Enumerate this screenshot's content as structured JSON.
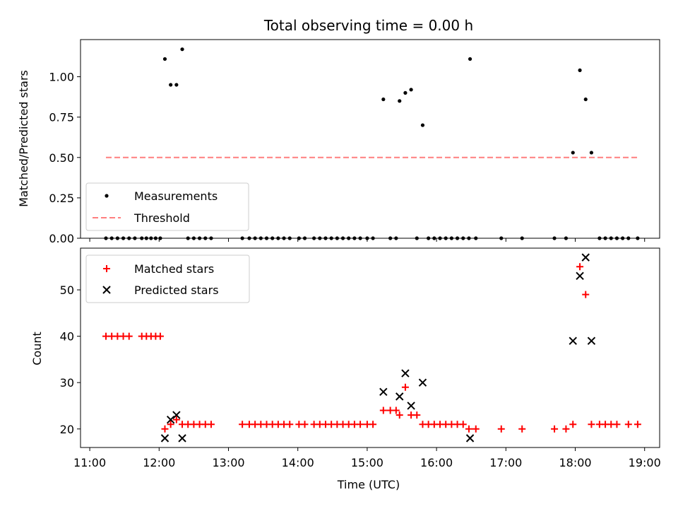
{
  "chart_data": [
    {
      "type": "scatter",
      "title": "Total observing time = 0.00 h",
      "xlabel": "",
      "ylabel": "Matched/Predicted stars",
      "ylim": [
        0,
        1.23
      ],
      "y_ticks": [
        "0.00",
        "0.25",
        "0.50",
        "0.75",
        "1.00"
      ],
      "legend": {
        "placement": "bottom-left",
        "entries": [
          "Measurements",
          "Threshold"
        ]
      },
      "series": [
        {
          "name": "Measurements",
          "marker": "dot",
          "color": "#000000",
          "points": [
            [
              "11:14",
              0
            ],
            [
              "11:19",
              0
            ],
            [
              "11:24",
              0
            ],
            [
              "11:29",
              0
            ],
            [
              "11:34",
              0
            ],
            [
              "11:39",
              0
            ],
            [
              "11:45",
              0
            ],
            [
              "11:49",
              0
            ],
            [
              "11:53",
              0
            ],
            [
              "11:57",
              0
            ],
            [
              "12:01",
              0
            ],
            [
              "12:05",
              1.11
            ],
            [
              "12:10",
              0.95
            ],
            [
              "12:15",
              0.95
            ],
            [
              "12:20",
              1.17
            ],
            [
              "12:25",
              0
            ],
            [
              "12:30",
              0
            ],
            [
              "12:35",
              0
            ],
            [
              "12:40",
              0
            ],
            [
              "12:45",
              0
            ],
            [
              "13:12",
              0
            ],
            [
              "13:18",
              0
            ],
            [
              "13:23",
              0
            ],
            [
              "13:28",
              0
            ],
            [
              "13:33",
              0
            ],
            [
              "13:38",
              0
            ],
            [
              "13:43",
              0
            ],
            [
              "13:48",
              0
            ],
            [
              "13:53",
              0
            ],
            [
              "14:01",
              0
            ],
            [
              "14:06",
              0
            ],
            [
              "14:14",
              0
            ],
            [
              "14:19",
              0
            ],
            [
              "14:24",
              0
            ],
            [
              "14:29",
              0
            ],
            [
              "14:34",
              0
            ],
            [
              "14:39",
              0
            ],
            [
              "14:44",
              0
            ],
            [
              "14:49",
              0
            ],
            [
              "14:54",
              0
            ],
            [
              "15:00",
              0
            ],
            [
              "15:05",
              0
            ],
            [
              "15:14",
              0.86
            ],
            [
              "15:20",
              0
            ],
            [
              "15:25",
              0
            ],
            [
              "15:28",
              0.85
            ],
            [
              "15:33",
              0.9
            ],
            [
              "15:38",
              0.92
            ],
            [
              "15:43",
              0
            ],
            [
              "15:48",
              0.7
            ],
            [
              "15:53",
              0
            ],
            [
              "15:58",
              0
            ],
            [
              "16:03",
              0
            ],
            [
              "16:08",
              0
            ],
            [
              "16:13",
              0
            ],
            [
              "16:18",
              0
            ],
            [
              "16:23",
              0
            ],
            [
              "16:28",
              0
            ],
            [
              "16:29",
              1.11
            ],
            [
              "16:34",
              0
            ],
            [
              "16:56",
              0
            ],
            [
              "17:14",
              0
            ],
            [
              "17:42",
              0
            ],
            [
              "17:52",
              0
            ],
            [
              "17:58",
              0.53
            ],
            [
              "18:04",
              1.04
            ],
            [
              "18:09",
              0.86
            ],
            [
              "18:14",
              0.53
            ],
            [
              "18:21",
              0
            ],
            [
              "18:26",
              0
            ],
            [
              "18:31",
              0
            ],
            [
              "18:36",
              0
            ],
            [
              "18:41",
              0
            ],
            [
              "18:46",
              0
            ],
            [
              "18:54",
              0
            ]
          ]
        },
        {
          "name": "Threshold",
          "style": "dashed",
          "color": "#ff7f7f",
          "x": [
            "11:14",
            "18:54"
          ],
          "y": [
            0.5,
            0.5
          ]
        }
      ]
    },
    {
      "type": "scatter",
      "title": "",
      "xlabel": "Time (UTC)",
      "ylabel": "Count",
      "ylim": [
        16,
        59
      ],
      "y_ticks": [
        "20",
        "30",
        "40",
        "50"
      ],
      "x_ticks": [
        "11:00",
        "12:00",
        "13:00",
        "14:00",
        "15:00",
        "16:00",
        "17:00",
        "18:00",
        "19:00"
      ],
      "xlim": [
        "10:52",
        "19:13"
      ],
      "legend": {
        "placement": "top-left",
        "entries": [
          "Matched stars",
          "Predicted stars"
        ]
      },
      "series": [
        {
          "name": "Matched stars",
          "marker": "plus",
          "color": "#ff0000",
          "points": [
            [
              "11:14",
              40
            ],
            [
              "11:19",
              40
            ],
            [
              "11:24",
              40
            ],
            [
              "11:29",
              40
            ],
            [
              "11:34",
              40
            ],
            [
              "11:45",
              40
            ],
            [
              "11:49",
              40
            ],
            [
              "11:53",
              40
            ],
            [
              "11:57",
              40
            ],
            [
              "12:01",
              40
            ],
            [
              "12:05",
              20
            ],
            [
              "12:10",
              21
            ],
            [
              "12:15",
              22
            ],
            [
              "12:20",
              21
            ],
            [
              "12:25",
              21
            ],
            [
              "12:30",
              21
            ],
            [
              "12:35",
              21
            ],
            [
              "12:40",
              21
            ],
            [
              "12:45",
              21
            ],
            [
              "13:12",
              21
            ],
            [
              "13:18",
              21
            ],
            [
              "13:23",
              21
            ],
            [
              "13:28",
              21
            ],
            [
              "13:33",
              21
            ],
            [
              "13:38",
              21
            ],
            [
              "13:43",
              21
            ],
            [
              "13:48",
              21
            ],
            [
              "13:53",
              21
            ],
            [
              "14:01",
              21
            ],
            [
              "14:06",
              21
            ],
            [
              "14:14",
              21
            ],
            [
              "14:19",
              21
            ],
            [
              "14:24",
              21
            ],
            [
              "14:29",
              21
            ],
            [
              "14:34",
              21
            ],
            [
              "14:39",
              21
            ],
            [
              "14:44",
              21
            ],
            [
              "14:49",
              21
            ],
            [
              "14:54",
              21
            ],
            [
              "15:00",
              21
            ],
            [
              "15:05",
              21
            ],
            [
              "15:14",
              24
            ],
            [
              "15:20",
              24
            ],
            [
              "15:25",
              24
            ],
            [
              "15:28",
              23
            ],
            [
              "15:33",
              29
            ],
            [
              "15:38",
              23
            ],
            [
              "15:43",
              23
            ],
            [
              "15:48",
              21
            ],
            [
              "15:53",
              21
            ],
            [
              "15:58",
              21
            ],
            [
              "16:03",
              21
            ],
            [
              "16:08",
              21
            ],
            [
              "16:13",
              21
            ],
            [
              "16:18",
              21
            ],
            [
              "16:23",
              21
            ],
            [
              "16:28",
              20
            ],
            [
              "16:34",
              20
            ],
            [
              "16:56",
              20
            ],
            [
              "17:14",
              20
            ],
            [
              "17:42",
              20
            ],
            [
              "17:52",
              20
            ],
            [
              "17:58",
              21
            ],
            [
              "18:04",
              55
            ],
            [
              "18:09",
              49
            ],
            [
              "18:14",
              21
            ],
            [
              "18:21",
              21
            ],
            [
              "18:26",
              21
            ],
            [
              "18:31",
              21
            ],
            [
              "18:36",
              21
            ],
            [
              "18:46",
              21
            ],
            [
              "18:54",
              21
            ]
          ]
        },
        {
          "name": "Predicted stars",
          "marker": "x",
          "color": "#000000",
          "points": [
            [
              "12:05",
              18
            ],
            [
              "12:10",
              22
            ],
            [
              "12:15",
              23
            ],
            [
              "12:20",
              18
            ],
            [
              "15:14",
              28
            ],
            [
              "15:28",
              27
            ],
            [
              "15:33",
              32
            ],
            [
              "15:38",
              25
            ],
            [
              "15:48",
              30
            ],
            [
              "16:29",
              18
            ],
            [
              "17:58",
              39
            ],
            [
              "18:04",
              53
            ],
            [
              "18:09",
              57
            ],
            [
              "18:14",
              39
            ]
          ]
        }
      ]
    }
  ]
}
